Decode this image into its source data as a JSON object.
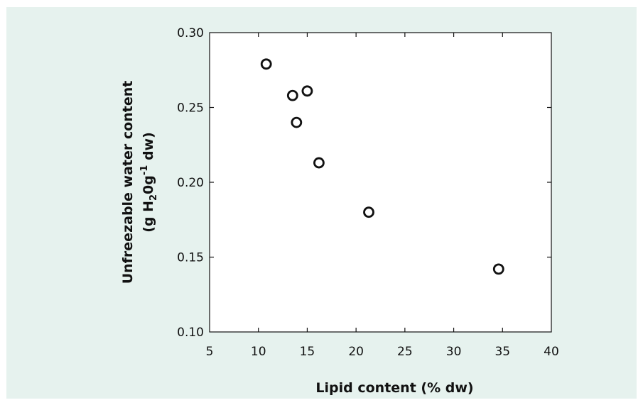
{
  "chart_data": {
    "type": "scatter",
    "xlabel": "Lipid content (% dw)",
    "ylabel_line1": "Unfreezable water content",
    "ylabel_line2": {
      "pre": "(g H",
      "sub": "2",
      "mid": "0g",
      "sup": "-1",
      "post": " dw)"
    },
    "xlim": [
      5,
      40
    ],
    "ylim": [
      0.1,
      0.3
    ],
    "x_ticks": [
      5,
      10,
      15,
      20,
      25,
      30,
      35,
      40
    ],
    "y_ticks": [
      0.1,
      0.15,
      0.2,
      0.25,
      0.3
    ],
    "x_tick_labels": [
      "5",
      "10",
      "15",
      "20",
      "25",
      "30",
      "35",
      "40"
    ],
    "y_tick_labels": [
      "0.10",
      "0.15",
      "0.20",
      "0.25",
      "0.30"
    ],
    "grid": false,
    "points": [
      {
        "x": 10.8,
        "y": 0.279
      },
      {
        "x": 13.5,
        "y": 0.258
      },
      {
        "x": 15.0,
        "y": 0.261
      },
      {
        "x": 13.9,
        "y": 0.24
      },
      {
        "x": 16.2,
        "y": 0.213
      },
      {
        "x": 21.3,
        "y": 0.18
      },
      {
        "x": 34.6,
        "y": 0.142
      }
    ]
  }
}
